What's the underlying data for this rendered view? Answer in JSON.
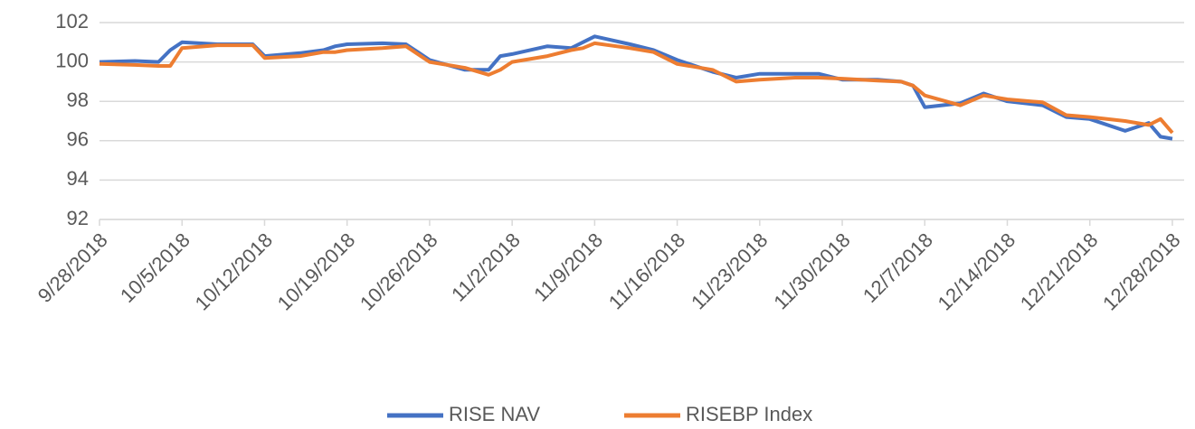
{
  "chart_data": {
    "type": "line",
    "x": [
      "9/28/2018",
      "10/1/2018",
      "10/3/2018",
      "10/4/2018",
      "10/5/2018",
      "10/8/2018",
      "10/10/2018",
      "10/11/2018",
      "10/12/2018",
      "10/15/2018",
      "10/17/2018",
      "10/18/2018",
      "10/19/2018",
      "10/22/2018",
      "10/24/2018",
      "10/25/2018",
      "10/26/2018",
      "10/29/2018",
      "10/31/2018",
      "11/1/2018",
      "11/2/2018",
      "11/5/2018",
      "11/7/2018",
      "11/8/2018",
      "11/9/2018",
      "11/12/2018",
      "11/14/2018",
      "11/16/2018",
      "11/19/2018",
      "11/21/2018",
      "11/23/2018",
      "11/26/2018",
      "11/28/2018",
      "11/30/2018",
      "12/3/2018",
      "12/5/2018",
      "12/6/2018",
      "12/7/2018",
      "12/10/2018",
      "12/12/2018",
      "12/14/2018",
      "12/17/2018",
      "12/19/2018",
      "12/21/2018",
      "12/24/2018",
      "12/26/2018",
      "12/27/2018",
      "12/28/2018"
    ],
    "series": [
      {
        "name": "RISE NAV",
        "color": "#4472c4",
        "values": [
          100.0,
          100.05,
          100.0,
          100.6,
          101.0,
          100.9,
          100.9,
          100.9,
          100.3,
          100.45,
          100.6,
          100.8,
          100.9,
          100.95,
          100.9,
          100.5,
          100.1,
          99.6,
          99.6,
          100.3,
          100.4,
          100.8,
          100.7,
          101.0,
          101.3,
          100.9,
          100.6,
          100.1,
          99.5,
          99.2,
          99.4,
          99.4,
          99.4,
          99.1,
          99.1,
          99.0,
          98.8,
          97.7,
          97.9,
          98.4,
          98.0,
          97.8,
          97.2,
          97.1,
          96.5,
          96.9,
          96.2,
          96.1
        ]
      },
      {
        "name": "RISEBP Index",
        "color": "#ed7d31",
        "values": [
          99.9,
          99.85,
          99.8,
          99.8,
          100.7,
          100.85,
          100.85,
          100.85,
          100.2,
          100.3,
          100.5,
          100.5,
          100.6,
          100.7,
          100.8,
          100.4,
          100.0,
          99.7,
          99.35,
          99.6,
          100.0,
          100.3,
          100.6,
          100.7,
          100.95,
          100.7,
          100.5,
          99.9,
          99.6,
          99.0,
          99.1,
          99.2,
          99.2,
          99.15,
          99.05,
          99.0,
          98.8,
          98.3,
          97.8,
          98.3,
          98.1,
          97.95,
          97.3,
          97.2,
          97.0,
          96.8,
          97.1,
          96.4
        ]
      }
    ],
    "xlim": [
      "9/28/2018",
      "12/29/2018"
    ],
    "xticks": [
      "9/28/2018",
      "10/5/2018",
      "10/12/2018",
      "10/19/2018",
      "10/26/2018",
      "11/2/2018",
      "11/9/2018",
      "11/16/2018",
      "11/23/2018",
      "11/30/2018",
      "12/7/2018",
      "12/14/2018",
      "12/21/2018",
      "12/28/2018"
    ],
    "ylim": [
      92,
      102
    ],
    "yticks": [
      92,
      94,
      96,
      98,
      100,
      102
    ],
    "grid": true
  }
}
